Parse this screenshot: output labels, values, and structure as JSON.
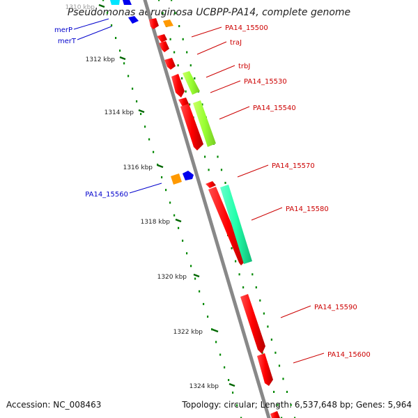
{
  "title": "Pseudomonas aeruginosa UCBPP-PA14, complete genome",
  "footer": {
    "accession": "Accession: NC_008463",
    "topology": "Topology: circular; Length: 6,537,648 bp; Genes: 5,964"
  },
  "ticks": [
    {
      "label": "1310 kbp",
      "faded": true
    },
    {
      "label": "1312 kbp"
    },
    {
      "label": "1314 kbp"
    },
    {
      "label": "1316 kbp"
    },
    {
      "label": "1318 kbp"
    },
    {
      "label": "1320 kbp"
    },
    {
      "label": "1322 kbp"
    },
    {
      "label": "1324 kbp"
    }
  ],
  "gene_labels": [
    {
      "name": "merP",
      "color": "#0000cc"
    },
    {
      "name": "merT",
      "color": "#0000cc"
    },
    {
      "name": "PA14_15500",
      "color": "#cc0000"
    },
    {
      "name": "traJ",
      "color": "#cc0000"
    },
    {
      "name": "trbJ",
      "color": "#cc0000"
    },
    {
      "name": "PA14_15530",
      "color": "#cc0000"
    },
    {
      "name": "PA14_15540",
      "color": "#cc0000"
    },
    {
      "name": "PA14_15570",
      "color": "#cc0000"
    },
    {
      "name": "PA14_15560",
      "color": "#0000cc"
    },
    {
      "name": "PA14_15580",
      "color": "#cc0000"
    },
    {
      "name": "PA14_15590",
      "color": "#cc0000"
    },
    {
      "name": "PA14_15600",
      "color": "#cc0000"
    }
  ],
  "colors": {
    "forward_gene": "#ff0000",
    "reverse_gene": "#0000ee",
    "orange_feature": "#ff9900",
    "lime_feature": "#99ff33",
    "aqua_feature": "#33ffaa",
    "cyan_feature": "#00e5ff",
    "backbone": "#888888",
    "tick_dots": "#008800"
  }
}
